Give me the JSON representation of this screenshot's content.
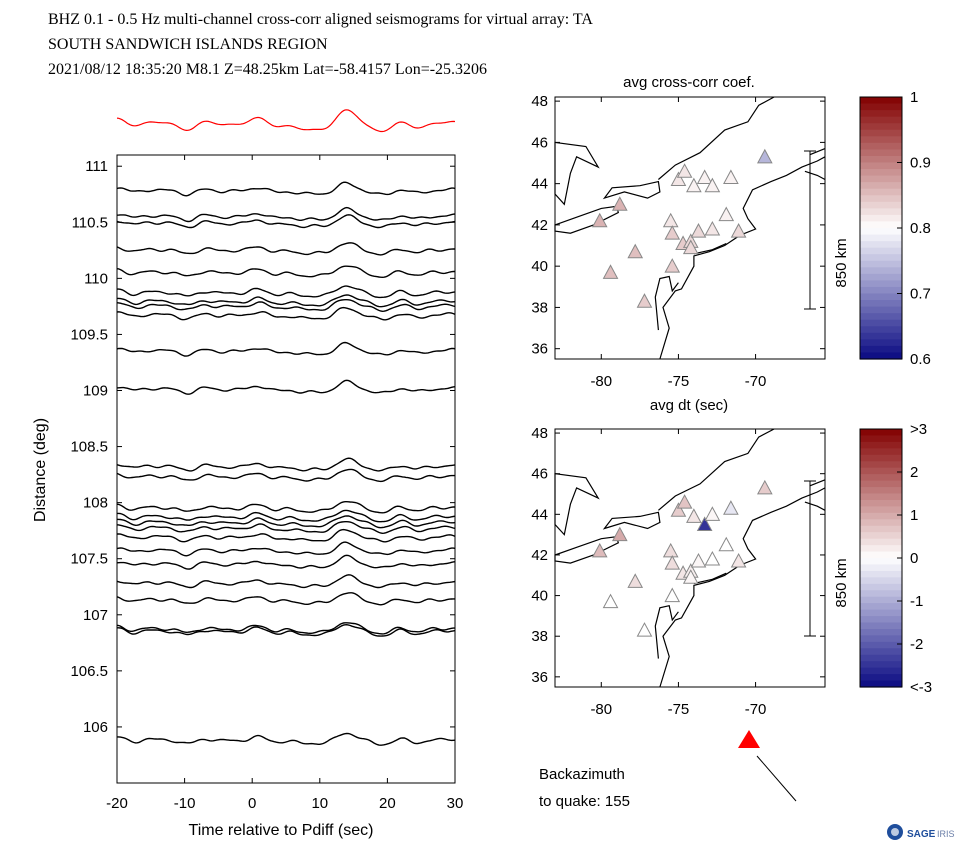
{
  "header": {
    "line1": "BHZ  0.1 - 0.5 Hz  multi-channel cross-corr aligned seismograms for virtual array: TA",
    "line2": "SOUTH SANDWICH ISLANDS REGION",
    "line3": "2021/08/12  18:35:20  M8.1  Z=48.25km Lat=-58.4157 Lon=-25.3206"
  },
  "seismogram_panel": {
    "xlabel": "Time relative to Pdiff (sec)",
    "ylabel": "Distance (deg)",
    "xlim": [
      -20,
      30
    ],
    "ylim": [
      105.5,
      111.1
    ],
    "xticks": [
      -20,
      -10,
      0,
      10,
      20,
      30
    ],
    "yticks": [
      "106",
      "106.5",
      "107",
      "107.5",
      "108",
      "108.5",
      "109",
      "109.5",
      "110",
      "110.5",
      "111"
    ],
    "stack_color": "#ff0000",
    "trace_color": "#000000"
  },
  "map_top": {
    "title": "avg cross-corr coef.",
    "xticks": [
      "-80",
      "-75",
      "-70"
    ],
    "yticks": [
      "36",
      "38",
      "40",
      "42",
      "44",
      "46",
      "48"
    ],
    "scale_label": "850 km",
    "colorbar_ticks": [
      "1",
      "0.9",
      "0.8",
      "0.7",
      "0.6"
    ]
  },
  "map_bottom": {
    "title": "avg dt (sec)",
    "xticks": [
      "-80",
      "-75",
      "-70"
    ],
    "yticks": [
      "36",
      "38",
      "40",
      "42",
      "44",
      "46",
      "48"
    ],
    "scale_label": "850 km",
    "colorbar_ticks": [
      ">3",
      "2",
      "1",
      "0",
      "-1",
      "-2",
      "<-3"
    ]
  },
  "backazimuth": {
    "line1": "Backazimuth",
    "line2": "to quake:  155",
    "value": 155,
    "marker_color": "#ff0000"
  },
  "logo": {
    "text": "SAGE"
  },
  "chart_data": [
    {
      "type": "line",
      "title": "",
      "xlabel": "Time relative to Pdiff (sec)",
      "ylabel": "Distance (deg)",
      "xlim": [
        -20,
        30
      ],
      "ylim": [
        105.5,
        111.1
      ],
      "trace_distances_deg": [
        105.88,
        106.85,
        106.87,
        107.13,
        107.28,
        107.45,
        107.57,
        107.69,
        107.77,
        107.82,
        107.87,
        107.95,
        108.23,
        108.32,
        109.01,
        109.35,
        109.67,
        109.75,
        109.79,
        109.87,
        110.05,
        110.25,
        110.49,
        110.55,
        110.78
      ]
    },
    {
      "type": "scatter",
      "title": "avg cross-corr coef.",
      "xlim": [
        -83,
        -65.5
      ],
      "ylim": [
        35.5,
        48.2
      ],
      "colorbar": {
        "min": 0.6,
        "max": 1.0
      },
      "stations": [
        {
          "lon": -80.1,
          "lat": 42.2,
          "value": 0.86
        },
        {
          "lon": -78.8,
          "lat": 43.0,
          "value": 0.86
        },
        {
          "lon": -77.8,
          "lat": 40.7,
          "value": 0.85
        },
        {
          "lon": -79.4,
          "lat": 39.7,
          "value": 0.85
        },
        {
          "lon": -77.2,
          "lat": 38.3,
          "value": 0.84
        },
        {
          "lon": -75.4,
          "lat": 40.0,
          "value": 0.84
        },
        {
          "lon": -75.5,
          "lat": 42.2,
          "value": 0.82
        },
        {
          "lon": -75.4,
          "lat": 41.6,
          "value": 0.84
        },
        {
          "lon": -74.7,
          "lat": 41.1,
          "value": 0.84
        },
        {
          "lon": -74.2,
          "lat": 41.2,
          "value": 0.83
        },
        {
          "lon": -73.7,
          "lat": 41.7,
          "value": 0.83
        },
        {
          "lon": -74.2,
          "lat": 40.9,
          "value": 0.83
        },
        {
          "lon": -72.8,
          "lat": 41.8,
          "value": 0.82
        },
        {
          "lon": -71.9,
          "lat": 42.5,
          "value": 0.81
        },
        {
          "lon": -71.1,
          "lat": 41.7,
          "value": 0.83
        },
        {
          "lon": -75.0,
          "lat": 44.2,
          "value": 0.82
        },
        {
          "lon": -74.6,
          "lat": 44.6,
          "value": 0.82
        },
        {
          "lon": -74.0,
          "lat": 43.9,
          "value": 0.81
        },
        {
          "lon": -73.3,
          "lat": 44.3,
          "value": 0.81
        },
        {
          "lon": -72.8,
          "lat": 43.9,
          "value": 0.81
        },
        {
          "lon": -71.6,
          "lat": 44.3,
          "value": 0.81
        },
        {
          "lon": -69.4,
          "lat": 45.3,
          "value": 0.74
        }
      ]
    },
    {
      "type": "scatter",
      "title": "avg dt (sec)",
      "xlim": [
        -83,
        -65.5
      ],
      "ylim": [
        35.5,
        48.2
      ],
      "colorbar": {
        "min": -3,
        "max": 3
      },
      "stations": [
        {
          "lon": -80.1,
          "lat": 42.2,
          "value": 0.8
        },
        {
          "lon": -78.8,
          "lat": 43.0,
          "value": 1.0
        },
        {
          "lon": -77.8,
          "lat": 40.7,
          "value": 0.4
        },
        {
          "lon": -79.4,
          "lat": 39.7,
          "value": 0.0
        },
        {
          "lon": -77.2,
          "lat": 38.3,
          "value": 0.0
        },
        {
          "lon": -75.4,
          "lat": 40.0,
          "value": 0.0
        },
        {
          "lon": -75.5,
          "lat": 42.2,
          "value": 0.4
        },
        {
          "lon": -75.4,
          "lat": 41.6,
          "value": 0.4
        },
        {
          "lon": -74.7,
          "lat": 41.1,
          "value": 0.3
        },
        {
          "lon": -74.2,
          "lat": 41.2,
          "value": 0.2
        },
        {
          "lon": -73.7,
          "lat": 41.7,
          "value": 0.1
        },
        {
          "lon": -74.2,
          "lat": 40.9,
          "value": 0.1
        },
        {
          "lon": -72.8,
          "lat": 41.8,
          "value": 0.0
        },
        {
          "lon": -71.9,
          "lat": 42.5,
          "value": 0.0
        },
        {
          "lon": -71.1,
          "lat": 41.7,
          "value": 0.3
        },
        {
          "lon": -75.0,
          "lat": 44.2,
          "value": 0.6
        },
        {
          "lon": -74.6,
          "lat": 44.6,
          "value": 0.7
        },
        {
          "lon": -74.0,
          "lat": 43.9,
          "value": 0.3
        },
        {
          "lon": -73.3,
          "lat": 43.5,
          "value": -2.5
        },
        {
          "lon": -72.8,
          "lat": 44.0,
          "value": 0.1
        },
        {
          "lon": -71.6,
          "lat": 44.3,
          "value": -0.3
        },
        {
          "lon": -69.4,
          "lat": 45.3,
          "value": 0.6
        }
      ]
    }
  ]
}
